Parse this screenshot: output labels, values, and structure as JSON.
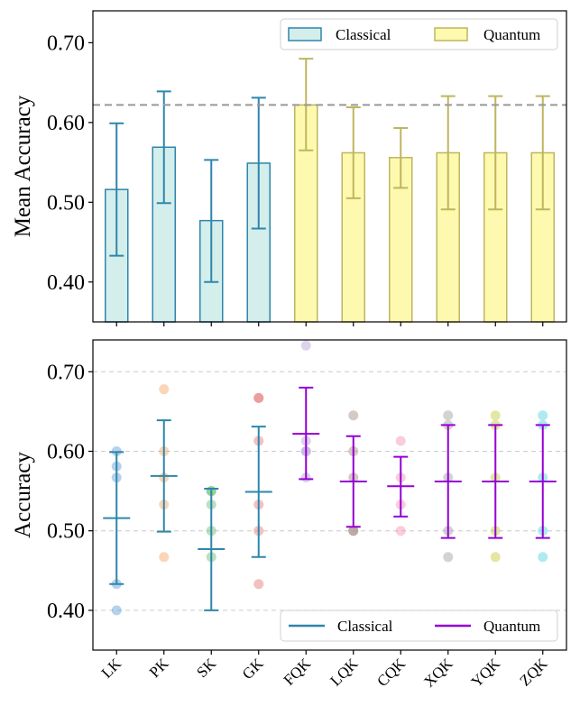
{
  "chart_data": [
    {
      "type": "bar",
      "ylabel": "Mean Accuracy",
      "ylim": [
        0.35,
        0.74
      ],
      "yticks": [
        "0.40",
        "0.50",
        "0.60",
        "0.70"
      ],
      "ytick_values": [
        0.4,
        0.5,
        0.6,
        0.7
      ],
      "reference_line": 0.622,
      "legend_position": "top-right",
      "series": [
        {
          "name": "Classical",
          "fill": "#d4eeec",
          "edge": "#2e86ab",
          "categories": [
            "LK",
            "PK",
            "SK",
            "GK"
          ],
          "values": [
            0.516,
            0.569,
            0.477,
            0.549
          ],
          "err_low": [
            0.433,
            0.499,
            0.4,
            0.467
          ],
          "err_high": [
            0.599,
            0.639,
            0.553,
            0.631
          ]
        },
        {
          "name": "Quantum",
          "fill": "#fdf9ae",
          "edge": "#bfb55e",
          "categories": [
            "FQK",
            "LQK",
            "CQK",
            "XQK",
            "YQK",
            "ZQK"
          ],
          "values": [
            0.622,
            0.562,
            0.556,
            0.562,
            0.562,
            0.562
          ],
          "err_low": [
            0.565,
            0.505,
            0.518,
            0.491,
            0.491,
            0.491
          ],
          "err_high": [
            0.68,
            0.619,
            0.593,
            0.633,
            0.633,
            0.633
          ]
        }
      ]
    },
    {
      "type": "scatter",
      "ylabel": "Accuracy",
      "ylim": [
        0.35,
        0.74
      ],
      "yticks": [
        "0.40",
        "0.50",
        "0.60",
        "0.70"
      ],
      "ytick_values": [
        0.4,
        0.5,
        0.6,
        0.7
      ],
      "categories": [
        "LK",
        "PK",
        "SK",
        "GK",
        "FQK",
        "LQK",
        "CQK",
        "XQK",
        "YQK",
        "ZQK"
      ],
      "grid": true,
      "legend_position": "bottom-right",
      "means": [
        0.516,
        0.569,
        0.477,
        0.549,
        0.622,
        0.562,
        0.556,
        0.562,
        0.562,
        0.562
      ],
      "err_low": [
        0.433,
        0.499,
        0.4,
        0.467,
        0.565,
        0.505,
        0.518,
        0.491,
        0.491,
        0.491
      ],
      "err_high": [
        0.599,
        0.639,
        0.553,
        0.631,
        0.68,
        0.619,
        0.593,
        0.633,
        0.633,
        0.633
      ],
      "group": [
        "Classical",
        "Classical",
        "Classical",
        "Classical",
        "Quantum",
        "Quantum",
        "Quantum",
        "Quantum",
        "Quantum",
        "Quantum"
      ],
      "line_colors": {
        "Classical": "#2e86ab",
        "Quantum": "#9400d3"
      },
      "point_colors": [
        "#5b9bd5",
        "#f4a460",
        "#66bb6a",
        "#e57373",
        "#b39ddb",
        "#a1887f",
        "#f48fb1",
        "#9e9e9e",
        "#c0ca33",
        "#4dd0e1"
      ],
      "points": [
        [
          0.6,
          0.581,
          0.567,
          0.433,
          0.4
        ],
        [
          0.678,
          0.6,
          0.567,
          0.533,
          0.467
        ],
        [
          0.55,
          0.55,
          0.533,
          0.5,
          0.467
        ],
        [
          0.667,
          0.667,
          0.613,
          0.533,
          0.5,
          0.433
        ],
        [
          0.733,
          0.613,
          0.6,
          0.6,
          0.567
        ],
        [
          0.645,
          0.6,
          0.567,
          0.5,
          0.5
        ],
        [
          0.613,
          0.567,
          0.533,
          0.5
        ],
        [
          0.645,
          0.633,
          0.567,
          0.5,
          0.467
        ],
        [
          0.645,
          0.633,
          0.567,
          0.5,
          0.467
        ],
        [
          0.645,
          0.633,
          0.567,
          0.5,
          0.467
        ]
      ],
      "legend": [
        "Classical",
        "Quantum"
      ]
    }
  ]
}
